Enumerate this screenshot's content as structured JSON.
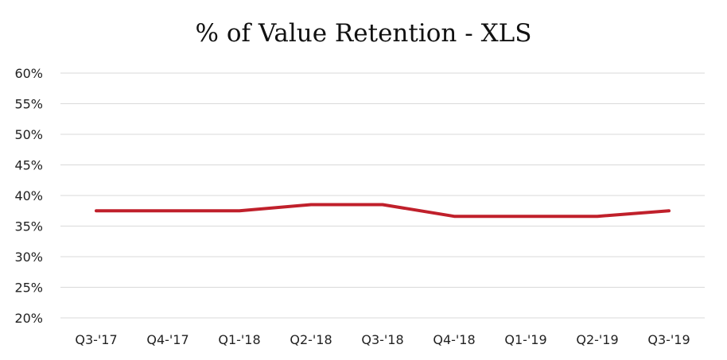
{
  "chart_data": {
    "type": "line",
    "title": "% of Value Retention - XLS",
    "xlabel": "",
    "ylabel": "",
    "categories": [
      "Q3-'17",
      "Q4-'17",
      "Q1-'18",
      "Q2-'18",
      "Q3-'18",
      "Q4-'18",
      "Q1-'19",
      "Q2-'19",
      "Q3-'19"
    ],
    "series": [
      {
        "values": [
          37.5,
          37.5,
          37.5,
          38.5,
          38.5,
          36.6,
          36.6,
          36.6,
          37.5
        ],
        "color": "#c0202b"
      }
    ],
    "ylim": [
      20,
      60
    ],
    "yticks": [
      20,
      25,
      30,
      35,
      40,
      45,
      50,
      55,
      60
    ],
    "ytick_labels": [
      "20%",
      "25%",
      "30%",
      "35%",
      "40%",
      "45%",
      "50%",
      "55%",
      "60%"
    ],
    "grid": true,
    "legend": "none"
  }
}
